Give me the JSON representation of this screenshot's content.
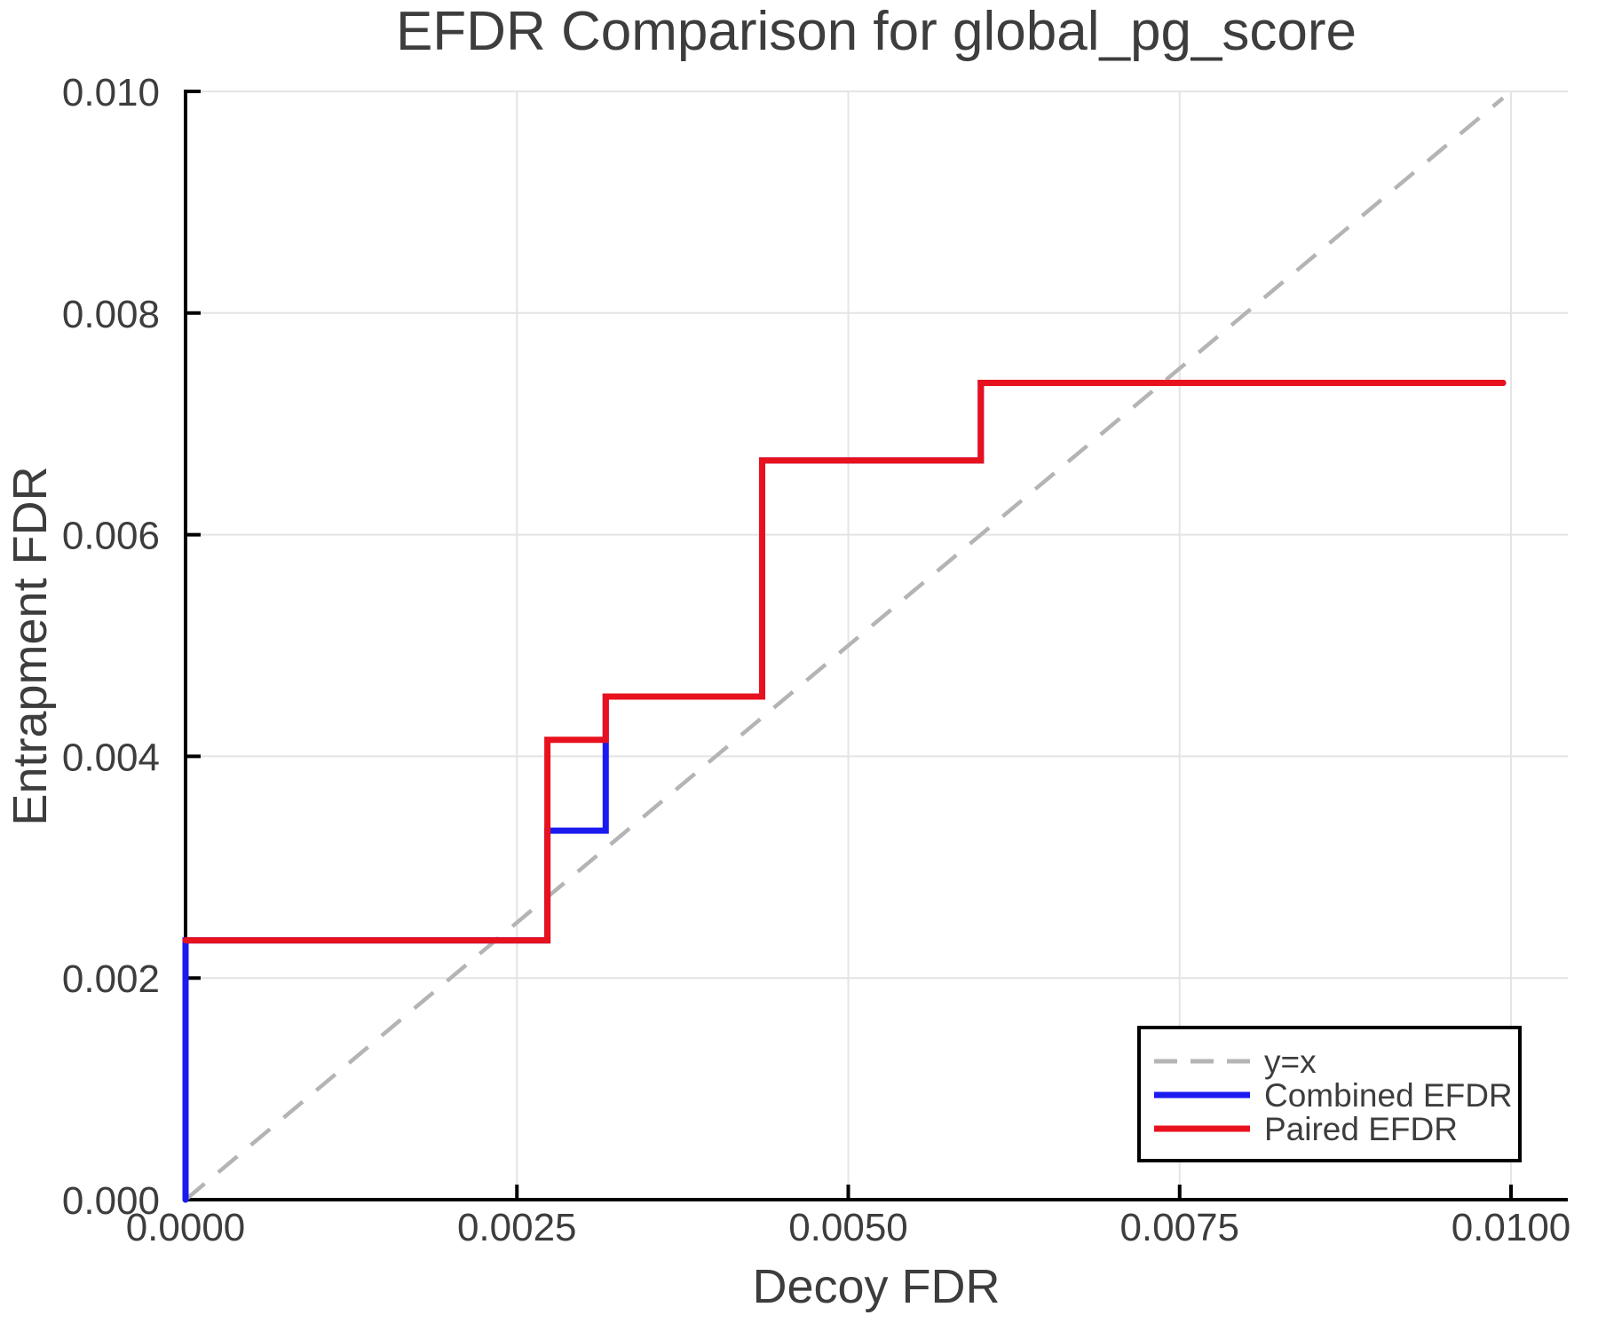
{
  "title": "EFDR Comparison for global_pg_score",
  "chart_data": {
    "type": "line",
    "subtype": "step",
    "title": "EFDR Comparison for global_pg_score",
    "xlabel": "Decoy FDR",
    "ylabel": "Entrapment FDR",
    "xlim": [
      0.0,
      0.01
    ],
    "ylim": [
      0.0,
      0.01
    ],
    "grid": true,
    "legend_position": "bottom-right",
    "x_ticks": [
      {
        "label": "0.0000",
        "value": 0.0
      },
      {
        "label": "0.0025",
        "value": 0.0025
      },
      {
        "label": "0.0050",
        "value": 0.005
      },
      {
        "label": "0.0075",
        "value": 0.0075
      },
      {
        "label": "0.0100",
        "value": 0.01
      }
    ],
    "y_ticks": [
      {
        "label": "0.000",
        "value": 0.0
      },
      {
        "label": "0.002",
        "value": 0.002
      },
      {
        "label": "0.004",
        "value": 0.004
      },
      {
        "label": "0.006",
        "value": 0.006
      },
      {
        "label": "0.008",
        "value": 0.008
      },
      {
        "label": "0.010",
        "value": 0.01
      }
    ],
    "series": [
      {
        "name": "y=x",
        "style": "dashed",
        "color": "#b4b4b4",
        "points": [
          [
            0.0,
            0.0
          ],
          [
            0.00994,
            0.00994
          ]
        ]
      },
      {
        "name": "Combined EFDR",
        "style": "solid",
        "color": "#1b1bf0",
        "points": [
          [
            0.0,
            0.0
          ],
          [
            0.0,
            0.00234
          ],
          [
            0.00273,
            0.00234
          ],
          [
            0.00273,
            0.00333
          ],
          [
            0.00317,
            0.00333
          ],
          [
            0.00317,
            0.00454
          ],
          [
            0.00435,
            0.00454
          ],
          [
            0.00435,
            0.00667
          ],
          [
            0.006,
            0.00667
          ],
          [
            0.006,
            0.00737
          ],
          [
            0.00994,
            0.00737
          ]
        ]
      },
      {
        "name": "Paired EFDR",
        "style": "solid",
        "color": "#e8111e",
        "points": [
          [
            0.0,
            0.00234
          ],
          [
            0.00273,
            0.00234
          ],
          [
            0.00273,
            0.00415
          ],
          [
            0.00317,
            0.00415
          ],
          [
            0.00317,
            0.00454
          ],
          [
            0.00435,
            0.00454
          ],
          [
            0.00435,
            0.00667
          ],
          [
            0.006,
            0.00667
          ],
          [
            0.006,
            0.00737
          ],
          [
            0.00994,
            0.00737
          ]
        ]
      }
    ]
  }
}
